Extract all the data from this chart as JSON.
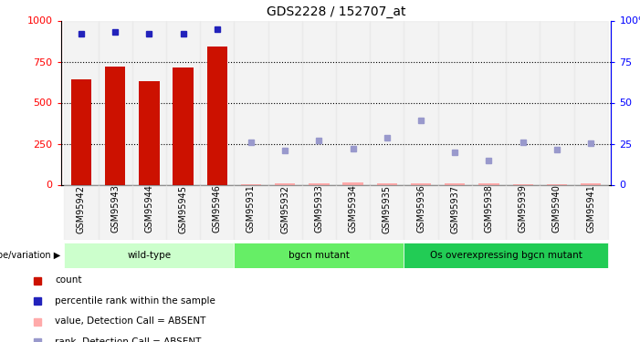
{
  "title": "GDS2228 / 152707_at",
  "samples": [
    "GSM95942",
    "GSM95943",
    "GSM95944",
    "GSM95945",
    "GSM95946",
    "GSM95931",
    "GSM95932",
    "GSM95933",
    "GSM95934",
    "GSM95935",
    "GSM95936",
    "GSM95937",
    "GSM95938",
    "GSM95939",
    "GSM95940",
    "GSM95941"
  ],
  "bar_values": [
    640,
    720,
    630,
    715,
    840,
    null,
    null,
    null,
    null,
    null,
    null,
    null,
    null,
    null,
    null,
    null
  ],
  "bar_absent_values": [
    null,
    null,
    null,
    null,
    null,
    5,
    8,
    8,
    12,
    10,
    10,
    8,
    6,
    5,
    5,
    8
  ],
  "rank_present": [
    92,
    93,
    92,
    92,
    95,
    null,
    null,
    null,
    null,
    null,
    null,
    null,
    null,
    null,
    null,
    null
  ],
  "rank_absent": [
    null,
    null,
    null,
    null,
    null,
    26,
    21,
    27,
    22,
    28.5,
    39,
    20,
    14.5,
    26,
    21.5,
    25.5
  ],
  "groups": [
    {
      "label": "wild-type",
      "start": 0,
      "end": 4,
      "color": "#ccffcc"
    },
    {
      "label": "bgcn mutant",
      "start": 5,
      "end": 9,
      "color": "#66ee66"
    },
    {
      "label": "Os overexpressing bgcn mutant",
      "start": 10,
      "end": 15,
      "color": "#22cc55"
    }
  ],
  "ylim_left": [
    0,
    1000
  ],
  "ylim_right": [
    0,
    100
  ],
  "yticks_left": [
    0,
    250,
    500,
    750,
    1000
  ],
  "yticks_right": [
    0,
    25,
    50,
    75,
    100
  ],
  "bar_color": "#cc1100",
  "bar_absent_color": "#ffaaaa",
  "rank_present_color": "#2222bb",
  "rank_absent_color": "#9999cc",
  "genotype_label": "genotype/variation",
  "legend_items": [
    {
      "label": "count",
      "color": "#cc1100"
    },
    {
      "label": "percentile rank within the sample",
      "color": "#2222bb"
    },
    {
      "label": "value, Detection Call = ABSENT",
      "color": "#ffaaaa"
    },
    {
      "label": "rank, Detection Call = ABSENT",
      "color": "#9999cc"
    }
  ]
}
